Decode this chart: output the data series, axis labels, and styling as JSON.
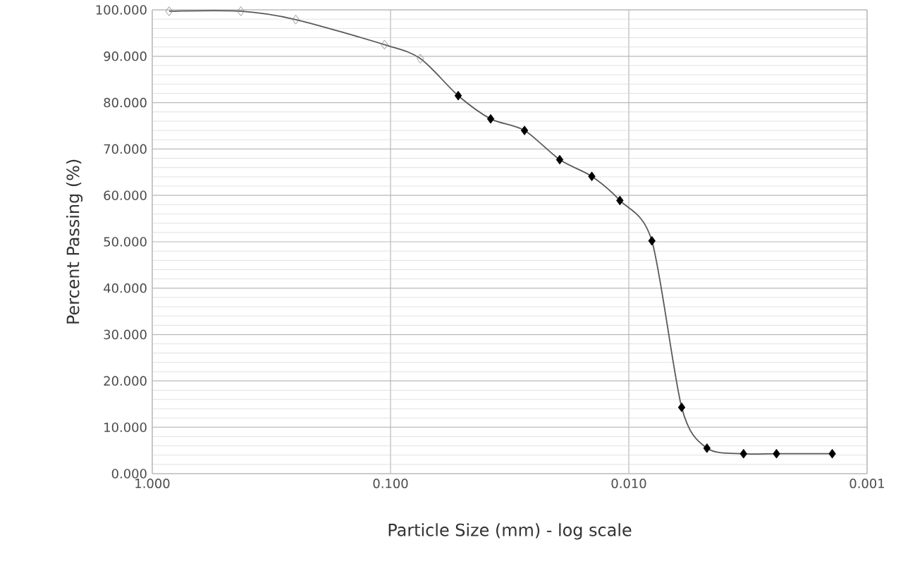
{
  "chart_data": {
    "type": "line",
    "xlabel": "Particle Size (mm) - log scale",
    "ylabel": "Percent Passing (%)",
    "log": "x",
    "grid": true,
    "xlim": [
      1,
      0.001
    ],
    "ylim": [
      0,
      100
    ],
    "xticks": [
      {
        "value": 1,
        "label": "1.000"
      },
      {
        "value": 0.1,
        "label": "0.100"
      },
      {
        "value": 0.01,
        "label": "0.010"
      },
      {
        "value": 0.001,
        "label": "0.001"
      }
    ],
    "yticks": [
      {
        "value": 0,
        "label": "0.000"
      },
      {
        "value": 10,
        "label": "10.000"
      },
      {
        "value": 20,
        "label": "20.000"
      },
      {
        "value": 30,
        "label": "30.000"
      },
      {
        "value": 40,
        "label": "40.000"
      },
      {
        "value": 50,
        "label": "50.000"
      },
      {
        "value": 60,
        "label": "60.000"
      },
      {
        "value": 70,
        "label": "70.000"
      },
      {
        "value": 80,
        "label": "80.000"
      },
      {
        "value": 90,
        "label": "90.000"
      },
      {
        "value": 100,
        "label": "100.000"
      }
    ],
    "series": [
      {
        "color": "#595959",
        "marker": "none",
        "line_style": "solid",
        "x": [
          0.85,
          0.425,
          0.25,
          0.106,
          0.075,
          0.052,
          0.038,
          0.0274,
          0.0195,
          0.0143,
          0.0109,
          0.008,
          0.006,
          0.0047,
          0.0033,
          0.0024,
          0.0014
        ],
        "values": [
          99.7,
          99.7,
          97.9,
          92.5,
          89.5,
          81.5,
          76.5,
          74,
          67.7,
          64.1,
          58.9,
          50.2,
          14.3,
          5.5,
          4.3,
          4.3,
          4.3
        ]
      },
      {
        "type": "scatter",
        "color": "#7f7f7f",
        "marker": "diamond",
        "x": [
          0.85,
          0.425,
          0.25,
          0.106,
          0.075
        ],
        "values": [
          99.7,
          99.7,
          97.9,
          92.5,
          89.5
        ]
      },
      {
        "type": "scatter",
        "color": "#000000",
        "marker": "diamond*",
        "x": [
          0.052,
          0.038,
          0.0274,
          0.0195,
          0.0143,
          0.0109,
          0.008,
          0.006,
          0.0047,
          0.0033,
          0.0024,
          0.0014
        ],
        "values": [
          81.5,
          76.5,
          74,
          67.7,
          64.1,
          58.9,
          50.2,
          14.3,
          5.5,
          4.3,
          4.3,
          4.3
        ]
      }
    ]
  }
}
